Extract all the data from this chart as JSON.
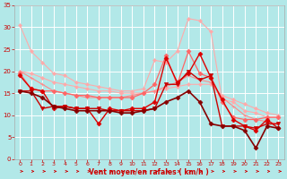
{
  "background_color": "#b2e8e8",
  "grid_color": "#ffffff",
  "xlabel": "Vent moyen/en rafales ( km/h )",
  "xlabel_color": "#cc0000",
  "tick_color": "#cc0000",
  "xlim": [
    -0.5,
    23.5
  ],
  "ylim": [
    0,
    35
  ],
  "yticks": [
    0,
    5,
    10,
    15,
    20,
    25,
    30,
    35
  ],
  "xticks": [
    0,
    1,
    2,
    3,
    4,
    5,
    6,
    7,
    8,
    9,
    10,
    11,
    12,
    13,
    14,
    15,
    16,
    17,
    18,
    19,
    20,
    21,
    22,
    23
  ],
  "series": [
    {
      "y": [
        30.5,
        24.5,
        22.0,
        19.5,
        19.0,
        17.5,
        17.0,
        16.5,
        16.0,
        15.5,
        15.5,
        16.0,
        22.5,
        22.0,
        24.5,
        32.0,
        31.5,
        29.0,
        13.5,
        13.0,
        11.0,
        10.5,
        9.5,
        9.5
      ],
      "color": "#ffaaaa",
      "linewidth": 0.8,
      "marker": "D",
      "markersize": 2.0
    },
    {
      "y": [
        20.0,
        19.5,
        18.5,
        17.5,
        17.0,
        16.5,
        16.0,
        15.5,
        15.5,
        15.0,
        15.0,
        15.0,
        15.5,
        16.0,
        16.5,
        17.0,
        17.0,
        17.0,
        14.5,
        13.5,
        12.5,
        11.5,
        10.5,
        10.0
      ],
      "color": "#ffaaaa",
      "linewidth": 0.8,
      "marker": "D",
      "markersize": 2.0
    },
    {
      "y": [
        20.0,
        18.5,
        17.0,
        15.5,
        15.0,
        14.5,
        14.0,
        14.0,
        14.0,
        14.0,
        14.5,
        15.0,
        15.5,
        16.5,
        17.5,
        19.0,
        18.0,
        17.5,
        14.0,
        12.0,
        10.0,
        9.0,
        8.5,
        8.0
      ],
      "color": "#ff8888",
      "linewidth": 0.8,
      "marker": "+",
      "markersize": 3.5
    },
    {
      "y": [
        19.5,
        16.0,
        15.5,
        15.5,
        15.0,
        14.5,
        14.5,
        14.0,
        14.0,
        14.0,
        14.0,
        15.0,
        17.0,
        23.5,
        17.0,
        24.5,
        19.5,
        18.5,
        13.0,
        9.5,
        9.0,
        9.0,
        9.5,
        9.5
      ],
      "color": "#ff6666",
      "linewidth": 0.9,
      "marker": "D",
      "markersize": 2.5
    },
    {
      "y": [
        19.0,
        16.0,
        15.5,
        11.5,
        12.0,
        11.5,
        11.5,
        8.0,
        11.5,
        11.0,
        11.5,
        11.5,
        13.0,
        23.0,
        17.5,
        19.5,
        24.0,
        18.5,
        13.5,
        9.0,
        7.5,
        6.5,
        9.0,
        7.0
      ],
      "color": "#dd0000",
      "linewidth": 1.0,
      "marker": "D",
      "markersize": 2.5
    },
    {
      "y": [
        15.5,
        15.5,
        11.5,
        12.0,
        12.0,
        11.5,
        11.5,
        11.5,
        11.0,
        11.0,
        11.0,
        11.0,
        11.5,
        17.0,
        17.0,
        20.0,
        18.0,
        19.0,
        7.5,
        7.5,
        7.5,
        7.0,
        8.0,
        8.0
      ],
      "color": "#cc0000",
      "linewidth": 1.0,
      "marker": "v",
      "markersize": 3.0
    },
    {
      "y": [
        15.5,
        15.0,
        14.0,
        12.0,
        11.5,
        11.0,
        11.0,
        11.0,
        11.0,
        10.5,
        10.5,
        11.0,
        11.5,
        13.0,
        14.0,
        15.5,
        13.0,
        8.0,
        7.5,
        7.5,
        6.5,
        2.5,
        7.5,
        7.0
      ],
      "color": "#880000",
      "linewidth": 1.2,
      "marker": "D",
      "markersize": 2.5
    }
  ],
  "arrow_color": "#cc0000"
}
